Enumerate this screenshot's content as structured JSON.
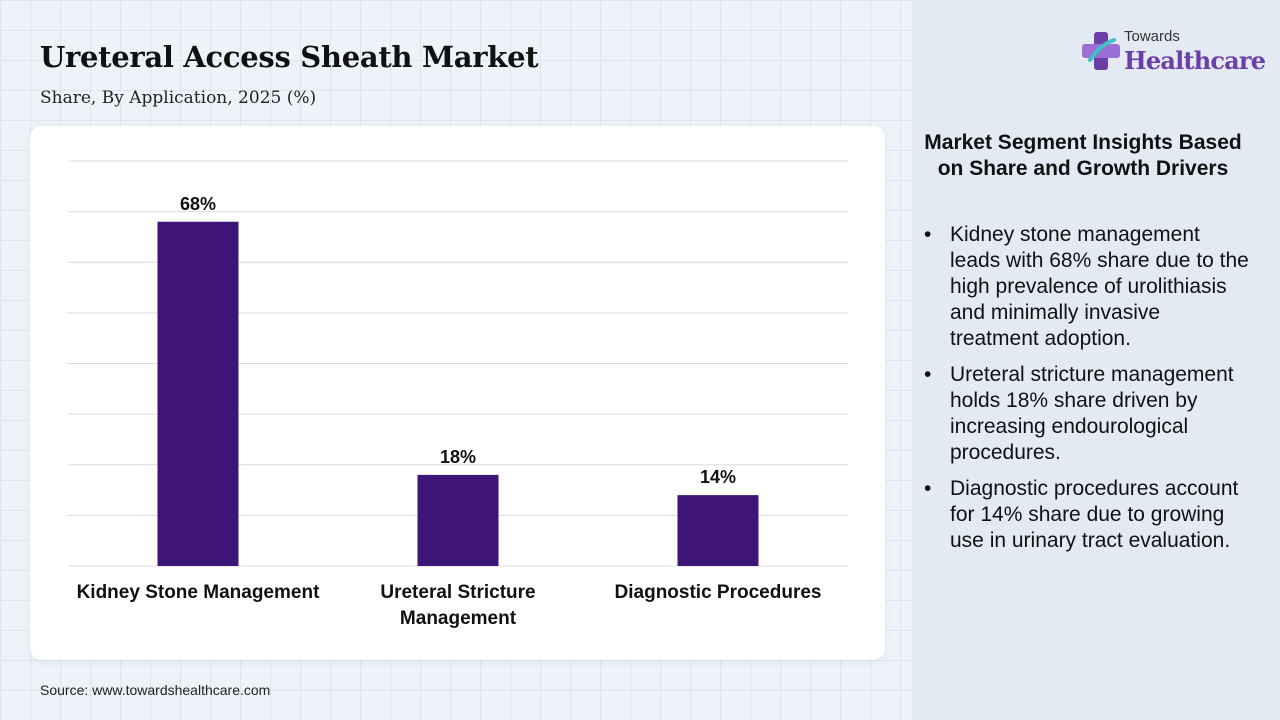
{
  "header": {
    "title": "Ureteral Access Sheath Market",
    "subtitle": "Share, By Application, 2025 (%)"
  },
  "logo": {
    "line1": "Towards",
    "line2": "Healthcare",
    "icon": "medical-cross-icon"
  },
  "colors": {
    "bar": "#3d1478",
    "logo_accent": "#6a3fa8",
    "gridline": "#dcdcdc"
  },
  "chart_data": {
    "type": "bar",
    "categories": [
      "Kidney Stone Management",
      "Ureteral Stricture Management",
      "Diagnostic Procedures"
    ],
    "category_lines": [
      [
        "Kidney Stone Management"
      ],
      [
        "Ureteral Stricture",
        "Management"
      ],
      [
        "Diagnostic Procedures"
      ]
    ],
    "values": [
      68,
      18,
      14
    ],
    "value_labels": [
      "68%",
      "18%",
      "14%"
    ],
    "ylim": [
      0,
      80
    ],
    "grid": true,
    "title": "",
    "xlabel": "",
    "ylabel": ""
  },
  "insights": {
    "title": "Market Segment Insights Based on Share and Growth Drivers",
    "bullet_glyph": "•",
    "items": [
      "Kidney stone management leads with 68% share due to the high prevalence of urolithiasis and minimally invasive treatment adoption.",
      "Ureteral stricture management holds 18% share driven by increasing endourological procedures.",
      "Diagnostic procedures account for 14% share due to growing use in urinary tract evaluation."
    ]
  },
  "source": "Source: www.towardshealthcare.com"
}
